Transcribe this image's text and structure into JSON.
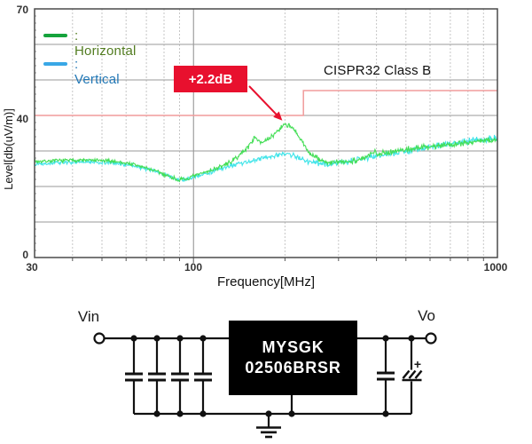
{
  "chart_data": {
    "type": "line",
    "title": "",
    "xlabel": "Frequency[MHz]",
    "ylabel": "Level[db(uV/m)]",
    "x_scale": "log",
    "xlim": [
      30,
      1000
    ],
    "ylim": [
      0,
      70
    ],
    "x_ticks": [
      30,
      100,
      1000
    ],
    "y_ticks": [
      70,
      40,
      0
    ],
    "grid": true,
    "legend_position": "top-left",
    "legend": [
      {
        "label": ": Horizontal",
        "color": "#15a33c",
        "text_color": "#527c20"
      },
      {
        "label": ": Vertical",
        "color": "#39a7e6",
        "text_color": "#1f76b5"
      }
    ],
    "annotation": {
      "label": "+2.2dB",
      "color": "#e8102e",
      "target": {
        "x": 196,
        "y": 38.3
      }
    },
    "limit_line": {
      "label": "CISPR32 Class B",
      "color": "#f09c9c",
      "segments": [
        {
          "from": 30,
          "to": 230,
          "level": 40
        },
        {
          "from": 230,
          "to": 1000,
          "level": 47
        }
      ]
    },
    "series": [
      {
        "name": "Horizontal",
        "color": "#44de56",
        "points": [
          [
            30,
            27.0
          ],
          [
            36,
            27.3
          ],
          [
            42,
            27.4
          ],
          [
            48,
            27.3
          ],
          [
            55,
            27.1
          ],
          [
            62,
            26.4
          ],
          [
            70,
            25.2
          ],
          [
            78,
            23.8
          ],
          [
            84,
            22.7
          ],
          [
            90,
            21.8
          ],
          [
            96,
            22.2
          ],
          [
            100,
            22.8
          ],
          [
            108,
            23.9
          ],
          [
            116,
            24.8
          ],
          [
            125,
            25.8
          ],
          [
            135,
            27.3
          ],
          [
            145,
            29.6
          ],
          [
            152,
            31.4
          ],
          [
            158,
            33.6
          ],
          [
            163,
            33.4
          ],
          [
            168,
            32.4
          ],
          [
            174,
            32.8
          ],
          [
            181,
            34.0
          ],
          [
            190,
            35.9
          ],
          [
            200,
            37.6
          ],
          [
            207,
            37.1
          ],
          [
            214,
            35.8
          ],
          [
            222,
            34.0
          ],
          [
            232,
            31.4
          ],
          [
            242,
            29.3
          ],
          [
            252,
            28.2
          ],
          [
            265,
            27.2
          ],
          [
            280,
            26.7
          ],
          [
            300,
            26.8
          ],
          [
            320,
            27.0
          ],
          [
            345,
            27.4
          ],
          [
            365,
            28.0
          ],
          [
            385,
            29.0
          ],
          [
            395,
            30.1
          ],
          [
            405,
            29.2
          ],
          [
            430,
            29.6
          ],
          [
            470,
            30.1
          ],
          [
            520,
            30.6
          ],
          [
            580,
            31.1
          ],
          [
            640,
            31.5
          ],
          [
            700,
            31.9
          ],
          [
            780,
            32.3
          ],
          [
            860,
            32.7
          ],
          [
            940,
            33.0
          ],
          [
            1000,
            33.2
          ]
        ]
      },
      {
        "name": "Vertical",
        "color": "#41e4e9",
        "points": [
          [
            30,
            26.4
          ],
          [
            38,
            26.8
          ],
          [
            46,
            26.9
          ],
          [
            55,
            26.6
          ],
          [
            64,
            25.8
          ],
          [
            72,
            24.7
          ],
          [
            80,
            23.4
          ],
          [
            88,
            22.1
          ],
          [
            94,
            22.0
          ],
          [
            100,
            22.6
          ],
          [
            110,
            23.7
          ],
          [
            120,
            24.7
          ],
          [
            130,
            25.5
          ],
          [
            142,
            26.4
          ],
          [
            155,
            27.2
          ],
          [
            168,
            27.9
          ],
          [
            182,
            28.5
          ],
          [
            195,
            29.1
          ],
          [
            203,
            29.3
          ],
          [
            212,
            28.8
          ],
          [
            222,
            28.1
          ],
          [
            232,
            27.4
          ],
          [
            245,
            26.8
          ],
          [
            260,
            26.4
          ],
          [
            280,
            26.4
          ],
          [
            300,
            26.7
          ],
          [
            330,
            27.2
          ],
          [
            360,
            27.8
          ],
          [
            400,
            28.6
          ],
          [
            450,
            29.4
          ],
          [
            500,
            30.0
          ],
          [
            560,
            30.7
          ],
          [
            620,
            31.3
          ],
          [
            700,
            32.0
          ],
          [
            780,
            32.6
          ],
          [
            860,
            33.1
          ],
          [
            940,
            33.5
          ],
          [
            1000,
            33.8
          ]
        ]
      }
    ]
  },
  "circuit": {
    "vin_label": "Vin",
    "vo_label": "Vo",
    "ic_label_line1": "MYSGK",
    "ic_label_line2": "02506BRSR",
    "plus_label": "+"
  }
}
